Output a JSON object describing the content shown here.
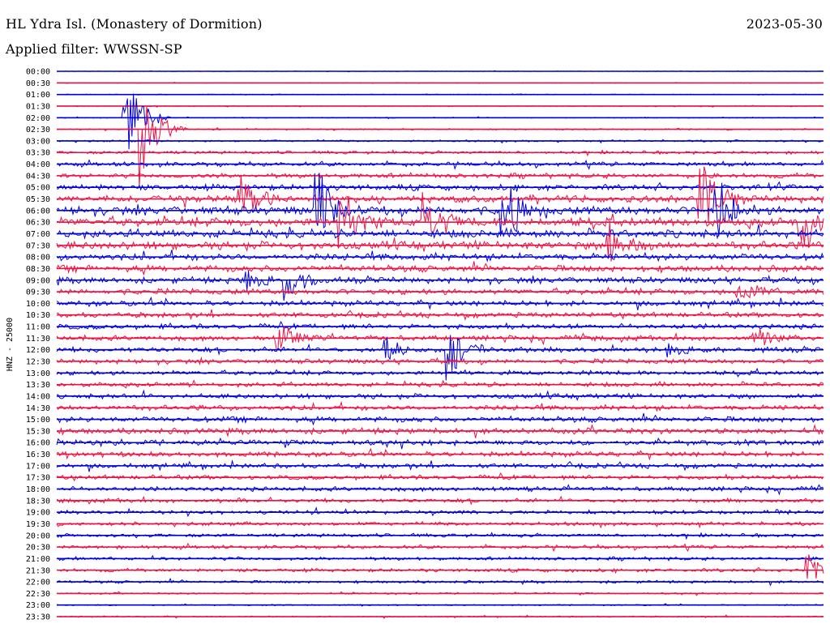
{
  "header": {
    "title": "HL Ydra Isl. (Monastery of Dormition)",
    "date": "2023-05-30",
    "filter_label": "Applied filter: WWSSN-SP"
  },
  "chart_data": {
    "type": "helicorder",
    "ylabel": "HNZ - 25000",
    "tick_labels": [
      "00:00",
      "00:30",
      "01:00",
      "01:30",
      "02:00",
      "02:30",
      "03:00",
      "03:30",
      "04:00",
      "04:30",
      "05:00",
      "05:30",
      "06:00",
      "06:30",
      "07:00",
      "07:30",
      "08:00",
      "08:30",
      "09:00",
      "09:30",
      "10:00",
      "10:30",
      "11:00",
      "11:30",
      "12:00",
      "12:30",
      "13:00",
      "13:30",
      "14:00",
      "14:30",
      "15:00",
      "15:30",
      "16:00",
      "16:30",
      "17:00",
      "17:30",
      "18:00",
      "18:30",
      "19:00",
      "19:30",
      "20:00",
      "20:30",
      "21:00",
      "21:30",
      "22:00",
      "22:30",
      "23:00",
      "23:30"
    ],
    "colors": [
      "#0000dd",
      "#ee1144"
    ],
    "noise_level": [
      0.3,
      0.4,
      0.5,
      0.5,
      0.6,
      0.8,
      1.2,
      1.8,
      2.4,
      2.8,
      3.4,
      4.2,
      5.0,
      5.2,
      4.8,
      4.6,
      4.0,
      3.8,
      3.6,
      3.4,
      3.2,
      3.0,
      3.0,
      3.0,
      3.0,
      2.8,
      2.6,
      2.6,
      2.8,
      3.0,
      3.2,
      3.4,
      3.2,
      3.0,
      2.8,
      2.6,
      2.6,
      2.4,
      2.2,
      2.2,
      2.0,
      2.0,
      2.0,
      2.0,
      1.6,
      1.0,
      0.8,
      0.8
    ],
    "events": [
      {
        "line": 4,
        "position": 0.09,
        "amplitude": 70
      },
      {
        "line": 5,
        "position": 0.11,
        "amplitude": 90
      },
      {
        "line": 11,
        "position": 0.24,
        "amplitude": 45
      },
      {
        "line": 12,
        "position": 0.34,
        "amplitude": 60
      },
      {
        "line": 13,
        "position": 0.37,
        "amplitude": 55
      },
      {
        "line": 12,
        "position": 0.58,
        "amplitude": 70
      },
      {
        "line": 13,
        "position": 0.48,
        "amplitude": 50
      },
      {
        "line": 15,
        "position": 0.72,
        "amplitude": 40
      },
      {
        "line": 11,
        "position": 0.84,
        "amplitude": 75
      },
      {
        "line": 12,
        "position": 0.86,
        "amplitude": 70
      },
      {
        "line": 13,
        "position": 0.97,
        "amplitude": 65
      },
      {
        "line": 18,
        "position": 0.25,
        "amplitude": 22
      },
      {
        "line": 18,
        "position": 0.3,
        "amplitude": 28
      },
      {
        "line": 19,
        "position": 0.89,
        "amplitude": 25
      },
      {
        "line": 23,
        "position": 0.29,
        "amplitude": 22
      },
      {
        "line": 24,
        "position": 0.43,
        "amplitude": 20
      },
      {
        "line": 24,
        "position": 0.51,
        "amplitude": 40
      },
      {
        "line": 23,
        "position": 0.91,
        "amplitude": 22
      },
      {
        "line": 24,
        "position": 0.8,
        "amplitude": 15
      },
      {
        "line": 43,
        "position": 0.98,
        "amplitude": 40
      }
    ]
  }
}
